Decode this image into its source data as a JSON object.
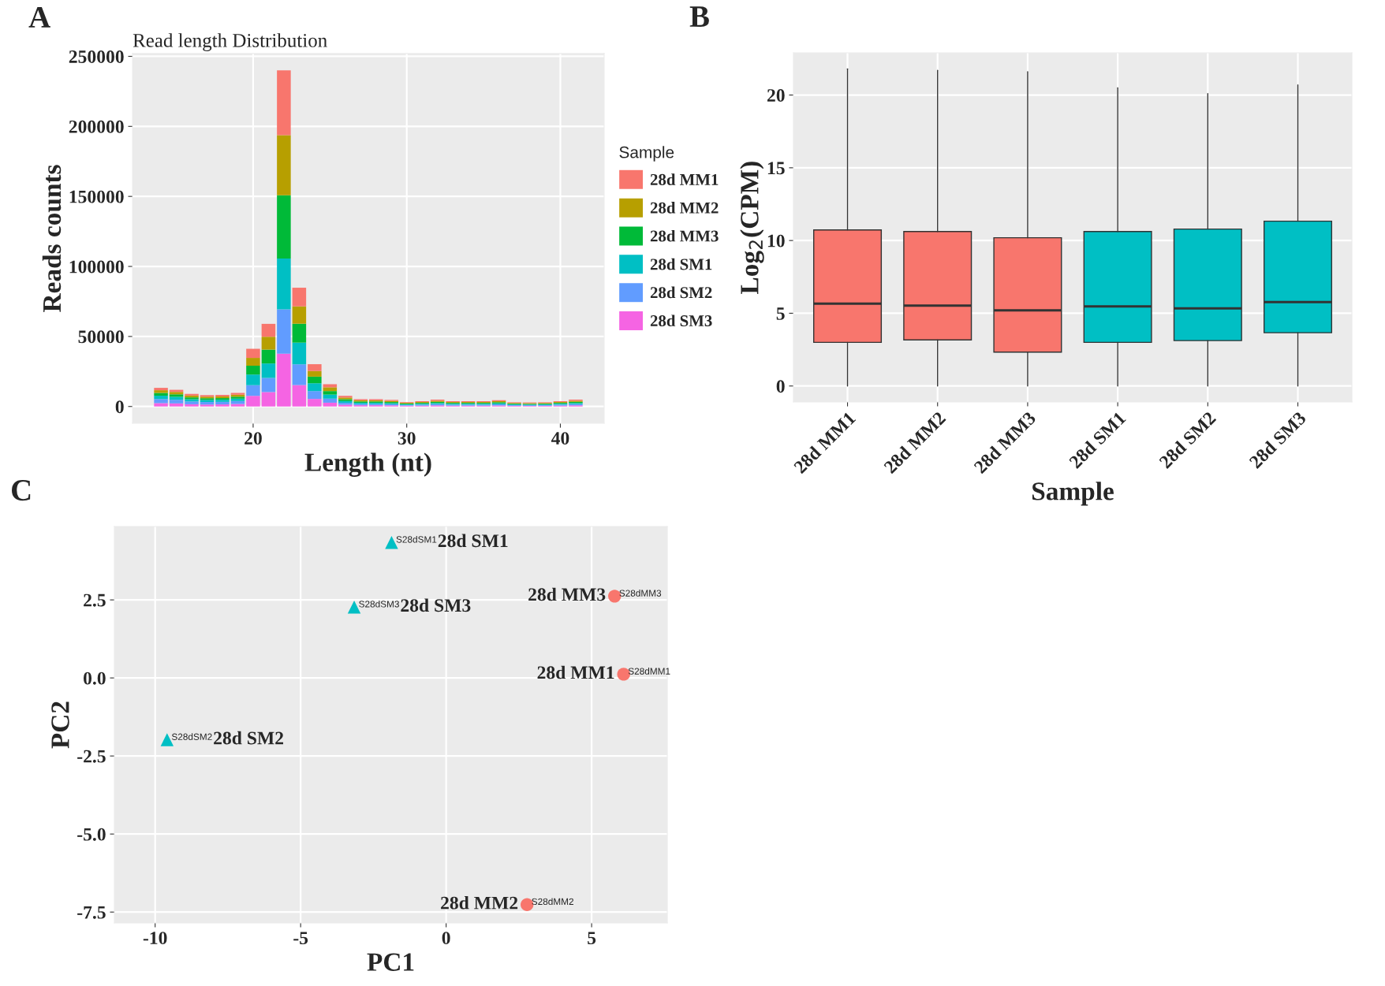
{
  "chart_data": [
    {
      "type": "bar",
      "title": "Read length Distribution",
      "xlabel": "Length (nt)",
      "ylabel": "Reads counts",
      "legend_title": "Sample",
      "stacked": true,
      "legend": "right",
      "grid": true,
      "annotations": [
        "A"
      ],
      "x": [
        14,
        15,
        16,
        17,
        18,
        19,
        20,
        21,
        22,
        23,
        24,
        25,
        26,
        27,
        28,
        29,
        30,
        31,
        32,
        33,
        34,
        35,
        36,
        37,
        38,
        39,
        40,
        41
      ],
      "xlim": [
        12.15,
        42.85
      ],
      "xticks": [
        20,
        30,
        40
      ],
      "ylim": [
        -12000,
        252000
      ],
      "yticks": [
        0,
        50000,
        100000,
        150000,
        200000,
        250000
      ],
      "series": [
        {
          "name": "28d SM3",
          "color": "#f564e3",
          "values": [
            2400,
            2200,
            1600,
            1400,
            1500,
            1800,
            7600,
            10300,
            37700,
            15300,
            5400,
            2700,
            1300,
            900,
            900,
            800,
            600,
            600,
            800,
            600,
            600,
            600,
            700,
            500,
            400,
            500,
            600,
            800
          ]
        },
        {
          "name": "28d SM2",
          "color": "#619cff",
          "values": [
            2900,
            2600,
            2000,
            1800,
            1800,
            2100,
            7600,
            10100,
            31700,
            14800,
            5600,
            2900,
            1300,
            900,
            900,
            800,
            500,
            700,
            900,
            700,
            700,
            700,
            800,
            500,
            500,
            500,
            700,
            900
          ]
        },
        {
          "name": "28d SM1",
          "color": "#00bfc4",
          "values": [
            2400,
            2100,
            1600,
            1500,
            1500,
            1700,
            7600,
            10300,
            36200,
            15500,
            5600,
            2900,
            1300,
            900,
            900,
            800,
            500,
            700,
            800,
            700,
            700,
            700,
            800,
            500,
            500,
            500,
            700,
            800
          ]
        },
        {
          "name": "28d MM3",
          "color": "#00ba38",
          "values": [
            2000,
            1800,
            1300,
            1200,
            1200,
            1400,
            6300,
            9900,
            45200,
            13500,
            4700,
            2500,
            1300,
            900,
            900,
            800,
            500,
            600,
            800,
            600,
            600,
            600,
            800,
            500,
            500,
            500,
            600,
            800
          ]
        },
        {
          "name": "28d MM2",
          "color": "#b79f00",
          "values": [
            1900,
            1700,
            1300,
            1100,
            1200,
            1400,
            5600,
            9200,
            42900,
            12400,
            4000,
            2700,
            1200,
            800,
            800,
            800,
            500,
            600,
            800,
            600,
            600,
            600,
            700,
            500,
            500,
            500,
            600,
            800
          ]
        },
        {
          "name": "28d MM1",
          "color": "#f8766d",
          "values": [
            1700,
            1500,
            1200,
            1100,
            1100,
            1300,
            6500,
            9200,
            46300,
            13300,
            4900,
            2200,
            1200,
            800,
            800,
            700,
            500,
            600,
            800,
            600,
            600,
            600,
            700,
            500,
            500,
            500,
            600,
            800
          ]
        }
      ]
    },
    {
      "type": "box",
      "xlabel": "Sample",
      "ylabel": "Log$_{2}$(CPM)",
      "grid": true,
      "annotations": [
        "B"
      ],
      "categories": [
        "28d MM1",
        "28d MM2",
        "28d MM3",
        "28d SM1",
        "28d SM2",
        "28d SM3"
      ],
      "colors": [
        "#f8766d",
        "#f8766d",
        "#f8766d",
        "#00bfc4",
        "#00bfc4",
        "#00bfc4"
      ],
      "ylim": [
        -1.1,
        22.9
      ],
      "yticks": [
        0,
        5,
        10,
        15,
        20
      ],
      "boxes": [
        {
          "low": 0,
          "q1": 3.0,
          "median": 5.66,
          "q3": 10.73,
          "high": 21.8
        },
        {
          "low": 0,
          "q1": 3.17,
          "median": 5.53,
          "q3": 10.62,
          "high": 21.7
        },
        {
          "low": 0,
          "q1": 2.33,
          "median": 5.2,
          "q3": 10.19,
          "high": 21.6
        },
        {
          "low": 0,
          "q1": 3.0,
          "median": 5.47,
          "q3": 10.62,
          "high": 20.5
        },
        {
          "low": 0,
          "q1": 3.12,
          "median": 5.34,
          "q3": 10.79,
          "high": 20.1
        },
        {
          "low": 0,
          "q1": 3.66,
          "median": 5.77,
          "q3": 11.33,
          "high": 20.7
        }
      ]
    },
    {
      "type": "scatter",
      "xlabel": "PC1",
      "ylabel": "PC2",
      "grid": true,
      "xlim": [
        -11.4,
        7.6
      ],
      "xticks": [
        -10,
        -5,
        0,
        5
      ],
      "ylim": [
        -7.85,
        4.85
      ],
      "yticks": [
        {
          "value": -7.5,
          "label": "-7.5"
        },
        {
          "value": -5,
          "label": "-5.0"
        },
        {
          "value": -2.5,
          "label": "-2.5"
        },
        {
          "value": 0,
          "label": "0.0"
        },
        {
          "value": 2.5,
          "label": "2.5"
        }
      ],
      "series": [
        {
          "color": "#f8766d",
          "marker": "circle",
          "x": [
            6.1,
            2.78,
            5.79
          ],
          "values": [
            0.12,
            -7.26,
            2.62
          ],
          "value_labels": [
            "S28dMM1",
            "S28dMM2",
            "S28dMM3"
          ]
        },
        {
          "color": "#00bfc4",
          "marker": "triangle",
          "x": [
            -1.875,
            -9.59,
            -3.16
          ],
          "values": [
            4.34,
            -1.98,
            2.27
          ],
          "value_labels": [
            "S28dSM1",
            "S28dSM2",
            "S28dSM3"
          ]
        }
      ],
      "annotations": [
        "C",
        {
          "text": "28d MM1",
          "x": 6.1,
          "y": 0.12
        },
        {
          "text": "28d MM2",
          "x": 2.78,
          "y": -7.26
        },
        {
          "text": "28d MM3",
          "x": 5.79,
          "y": 2.62
        },
        {
          "text": "28d SM1",
          "x": -1.875,
          "y": 4.34
        },
        {
          "text": "28d SM2",
          "x": -9.59,
          "y": -1.98
        },
        {
          "text": "28d SM3",
          "x": -3.16,
          "y": 2.27
        }
      ]
    }
  ]
}
